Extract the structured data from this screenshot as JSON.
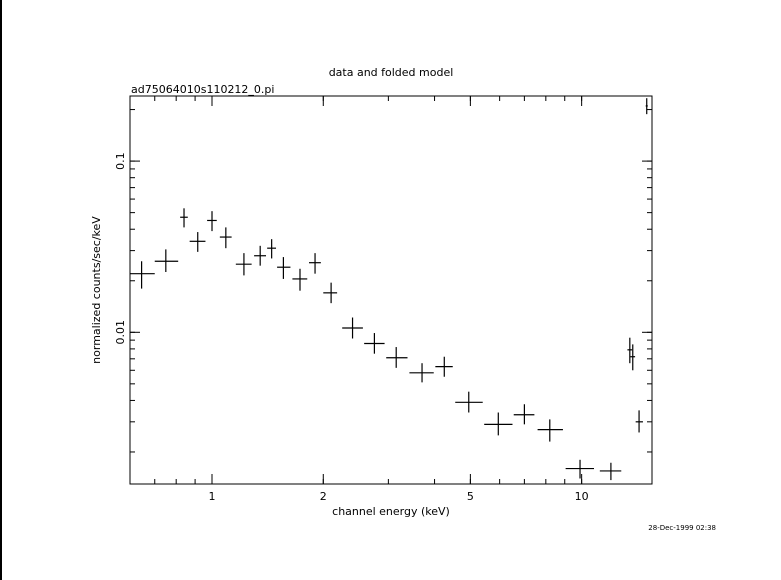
{
  "chart_data": {
    "type": "scatter",
    "title": "data and folded model",
    "subtitle": "ad75064010s110212_0.pi",
    "xlabel": "channel energy (keV)",
    "ylabel": "normalized counts/sec/keV",
    "x_scale": "log",
    "y_scale": "log",
    "xlim": [
      0.6,
      15.5
    ],
    "ylim": [
      0.0013,
      0.24
    ],
    "x_ticks": [
      {
        "value": 1,
        "label": "1"
      },
      {
        "value": 2,
        "label": "2"
      },
      {
        "value": 5,
        "label": "5"
      },
      {
        "value": 10,
        "label": "10"
      }
    ],
    "y_ticks": [
      {
        "value": 0.1,
        "label": "0.1"
      },
      {
        "value": 0.01,
        "label": "0.01"
      }
    ],
    "grid": false,
    "timestamp": "28-Dec-1999 02:38",
    "series": [
      {
        "points": [
          {
            "x": 0.645,
            "x_lo": 0.6,
            "x_hi": 0.7,
            "y": 0.022,
            "y_lo": 0.018,
            "y_hi": 0.026
          },
          {
            "x": 0.75,
            "x_lo": 0.7,
            "x_hi": 0.81,
            "y": 0.026,
            "y_lo": 0.0225,
            "y_hi": 0.0305
          },
          {
            "x": 0.84,
            "x_lo": 0.82,
            "x_hi": 0.86,
            "y": 0.047,
            "y_lo": 0.041,
            "y_hi": 0.053
          },
          {
            "x": 0.915,
            "x_lo": 0.87,
            "x_hi": 0.96,
            "y": 0.034,
            "y_lo": 0.0295,
            "y_hi": 0.0385
          },
          {
            "x": 1.0,
            "x_lo": 0.97,
            "x_hi": 1.03,
            "y": 0.045,
            "y_lo": 0.039,
            "y_hi": 0.051
          },
          {
            "x": 1.09,
            "x_lo": 1.05,
            "x_hi": 1.13,
            "y": 0.036,
            "y_lo": 0.031,
            "y_hi": 0.041
          },
          {
            "x": 1.22,
            "x_lo": 1.16,
            "x_hi": 1.28,
            "y": 0.025,
            "y_lo": 0.0215,
            "y_hi": 0.029
          },
          {
            "x": 1.35,
            "x_lo": 1.3,
            "x_hi": 1.4,
            "y": 0.028,
            "y_lo": 0.0245,
            "y_hi": 0.032
          },
          {
            "x": 1.45,
            "x_lo": 1.41,
            "x_hi": 1.49,
            "y": 0.031,
            "y_lo": 0.027,
            "y_hi": 0.035
          },
          {
            "x": 1.56,
            "x_lo": 1.5,
            "x_hi": 1.63,
            "y": 0.024,
            "y_lo": 0.0205,
            "y_hi": 0.0275
          },
          {
            "x": 1.73,
            "x_lo": 1.65,
            "x_hi": 1.81,
            "y": 0.0205,
            "y_lo": 0.0175,
            "y_hi": 0.0235
          },
          {
            "x": 1.9,
            "x_lo": 1.83,
            "x_hi": 1.97,
            "y": 0.0255,
            "y_lo": 0.022,
            "y_hi": 0.029
          },
          {
            "x": 2.1,
            "x_lo": 2.0,
            "x_hi": 2.18,
            "y": 0.017,
            "y_lo": 0.0148,
            "y_hi": 0.0195
          },
          {
            "x": 2.4,
            "x_lo": 2.25,
            "x_hi": 2.56,
            "y": 0.0106,
            "y_lo": 0.0092,
            "y_hi": 0.0122
          },
          {
            "x": 2.75,
            "x_lo": 2.58,
            "x_hi": 2.93,
            "y": 0.0086,
            "y_lo": 0.0075,
            "y_hi": 0.0099
          },
          {
            "x": 3.15,
            "x_lo": 2.96,
            "x_hi": 3.38,
            "y": 0.0071,
            "y_lo": 0.0062,
            "y_hi": 0.0082
          },
          {
            "x": 3.7,
            "x_lo": 3.42,
            "x_hi": 3.98,
            "y": 0.0058,
            "y_lo": 0.0051,
            "y_hi": 0.0066
          },
          {
            "x": 4.25,
            "x_lo": 4.02,
            "x_hi": 4.48,
            "y": 0.0063,
            "y_lo": 0.0055,
            "y_hi": 0.0072
          },
          {
            "x": 4.95,
            "x_lo": 4.55,
            "x_hi": 5.4,
            "y": 0.0039,
            "y_lo": 0.0034,
            "y_hi": 0.0045
          },
          {
            "x": 5.95,
            "x_lo": 5.45,
            "x_hi": 6.5,
            "y": 0.0029,
            "y_lo": 0.0025,
            "y_hi": 0.0034
          },
          {
            "x": 7.0,
            "x_lo": 6.55,
            "x_hi": 7.45,
            "y": 0.0033,
            "y_lo": 0.0029,
            "y_hi": 0.0038
          },
          {
            "x": 8.2,
            "x_lo": 7.6,
            "x_hi": 8.9,
            "y": 0.0027,
            "y_lo": 0.0023,
            "y_hi": 0.0031
          },
          {
            "x": 9.9,
            "x_lo": 9.05,
            "x_hi": 10.8,
            "y": 0.0016,
            "y_lo": 0.0014,
            "y_hi": 0.0018
          },
          {
            "x": 12.0,
            "x_lo": 11.2,
            "x_hi": 12.8,
            "y": 0.00155,
            "y_lo": 0.00137,
            "y_hi": 0.00173
          },
          {
            "x": 13.5,
            "x_lo": 13.3,
            "x_hi": 13.7,
            "y": 0.0079,
            "y_lo": 0.0066,
            "y_hi": 0.0093
          },
          {
            "x": 13.75,
            "x_lo": 13.55,
            "x_hi": 13.95,
            "y": 0.0072,
            "y_lo": 0.006,
            "y_hi": 0.0085
          },
          {
            "x": 14.3,
            "x_lo": 14.0,
            "x_hi": 14.65,
            "y": 0.003,
            "y_lo": 0.0026,
            "y_hi": 0.0035
          },
          {
            "x": 15.0,
            "x_lo": 14.9,
            "x_hi": 15.1,
            "y": 0.21,
            "y_lo": 0.188,
            "y_hi": 0.233
          }
        ]
      }
    ]
  }
}
